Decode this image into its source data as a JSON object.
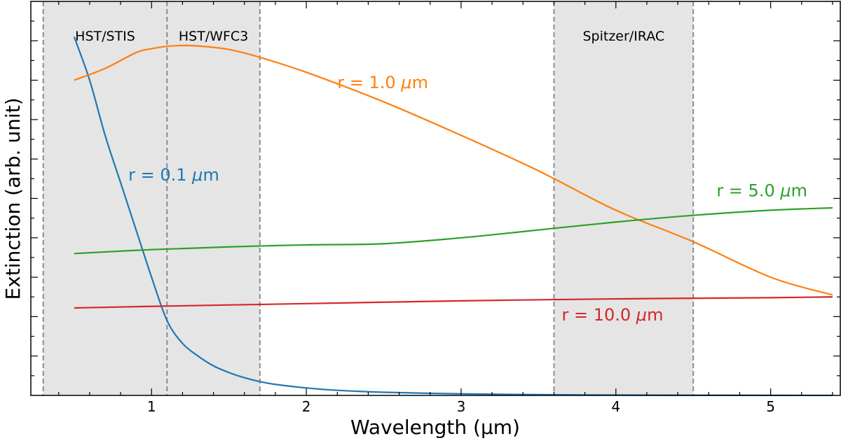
{
  "chart_data": {
    "type": "line",
    "xlabel": "Wavelength (μm)",
    "ylabel": "Extinction (arb. unit)",
    "xlim": [
      0.22,
      5.45
    ],
    "ylim": [
      0.0,
      1.0
    ],
    "yticks_labeled": false,
    "xticks": [
      1,
      2,
      3,
      4,
      5
    ],
    "xtick_labels": [
      "1",
      "2",
      "3",
      "4",
      "5"
    ],
    "minor_xtick_step": 0.2,
    "minor_ytick_step": 0.05,
    "ticks_inside": true,
    "grid": false,
    "bands": [
      {
        "label": "HST/STIS",
        "range": [
          0.3,
          1.1
        ],
        "color": "#e5e5e5"
      },
      {
        "label": "HST/WFC3",
        "range": [
          1.1,
          1.7
        ],
        "color": "#e5e5e5"
      },
      {
        "label": "Spitzer/IRAC",
        "range": [
          3.6,
          4.5
        ],
        "color": "#e5e5e5"
      }
    ],
    "band_edge_color": "#8c8c8c",
    "series": [
      {
        "name": "r = 0.1 μm",
        "label_parts": [
          "r = 0.1 ",
          "μ",
          "m"
        ],
        "color": "#1f77b4",
        "label_anchor": [
          0.85,
          0.545
        ],
        "x": [
          0.5,
          0.6,
          0.7,
          0.8,
          0.9,
          1.0,
          1.1,
          1.2,
          1.3,
          1.4,
          1.5,
          1.6,
          1.7,
          1.8,
          2.0,
          2.2,
          2.5,
          3.0,
          3.5,
          4.0,
          4.5,
          5.0,
          5.4
        ],
        "values": [
          0.91,
          0.8,
          0.66,
          0.54,
          0.42,
          0.3,
          0.19,
          0.132,
          0.1,
          0.075,
          0.058,
          0.045,
          0.035,
          0.028,
          0.019,
          0.013,
          0.008,
          0.004,
          0.002,
          0.001,
          0.0005,
          0.0002,
          0.0001
        ]
      },
      {
        "name": "r = 1.0 μm",
        "label_parts": [
          "r = 1.0 ",
          "μ",
          "m"
        ],
        "color": "#ff7f0e",
        "label_anchor": [
          2.2,
          0.78
        ],
        "x": [
          0.5,
          0.7,
          0.9,
          1.0,
          1.1,
          1.2,
          1.3,
          1.5,
          1.7,
          2.0,
          2.5,
          3.0,
          3.5,
          4.0,
          4.5,
          5.0,
          5.4
        ],
        "values": [
          0.8,
          0.83,
          0.87,
          0.88,
          0.886,
          0.888,
          0.887,
          0.878,
          0.858,
          0.82,
          0.745,
          0.66,
          0.57,
          0.47,
          0.39,
          0.3,
          0.255
        ]
      },
      {
        "name": "r = 5.0 μm",
        "label_parts": [
          "r = 5.0 ",
          "μ",
          "m"
        ],
        "color": "#2ca02c",
        "label_anchor": [
          4.65,
          0.505
        ],
        "x": [
          0.5,
          1.0,
          1.5,
          2.0,
          2.5,
          3.0,
          3.5,
          4.0,
          4.5,
          5.0,
          5.4
        ],
        "values": [
          0.36,
          0.37,
          0.377,
          0.382,
          0.385,
          0.4,
          0.42,
          0.44,
          0.457,
          0.47,
          0.476
        ]
      },
      {
        "name": "r = 10.0 μm",
        "label_parts": [
          "r = 10.0 ",
          "μ",
          "m"
        ],
        "color": "#d62728",
        "label_anchor": [
          3.65,
          0.19
        ],
        "x": [
          0.5,
          1.0,
          2.0,
          3.0,
          4.0,
          5.0,
          5.4
        ],
        "values": [
          0.222,
          0.226,
          0.233,
          0.24,
          0.245,
          0.248,
          0.25
        ]
      }
    ]
  }
}
